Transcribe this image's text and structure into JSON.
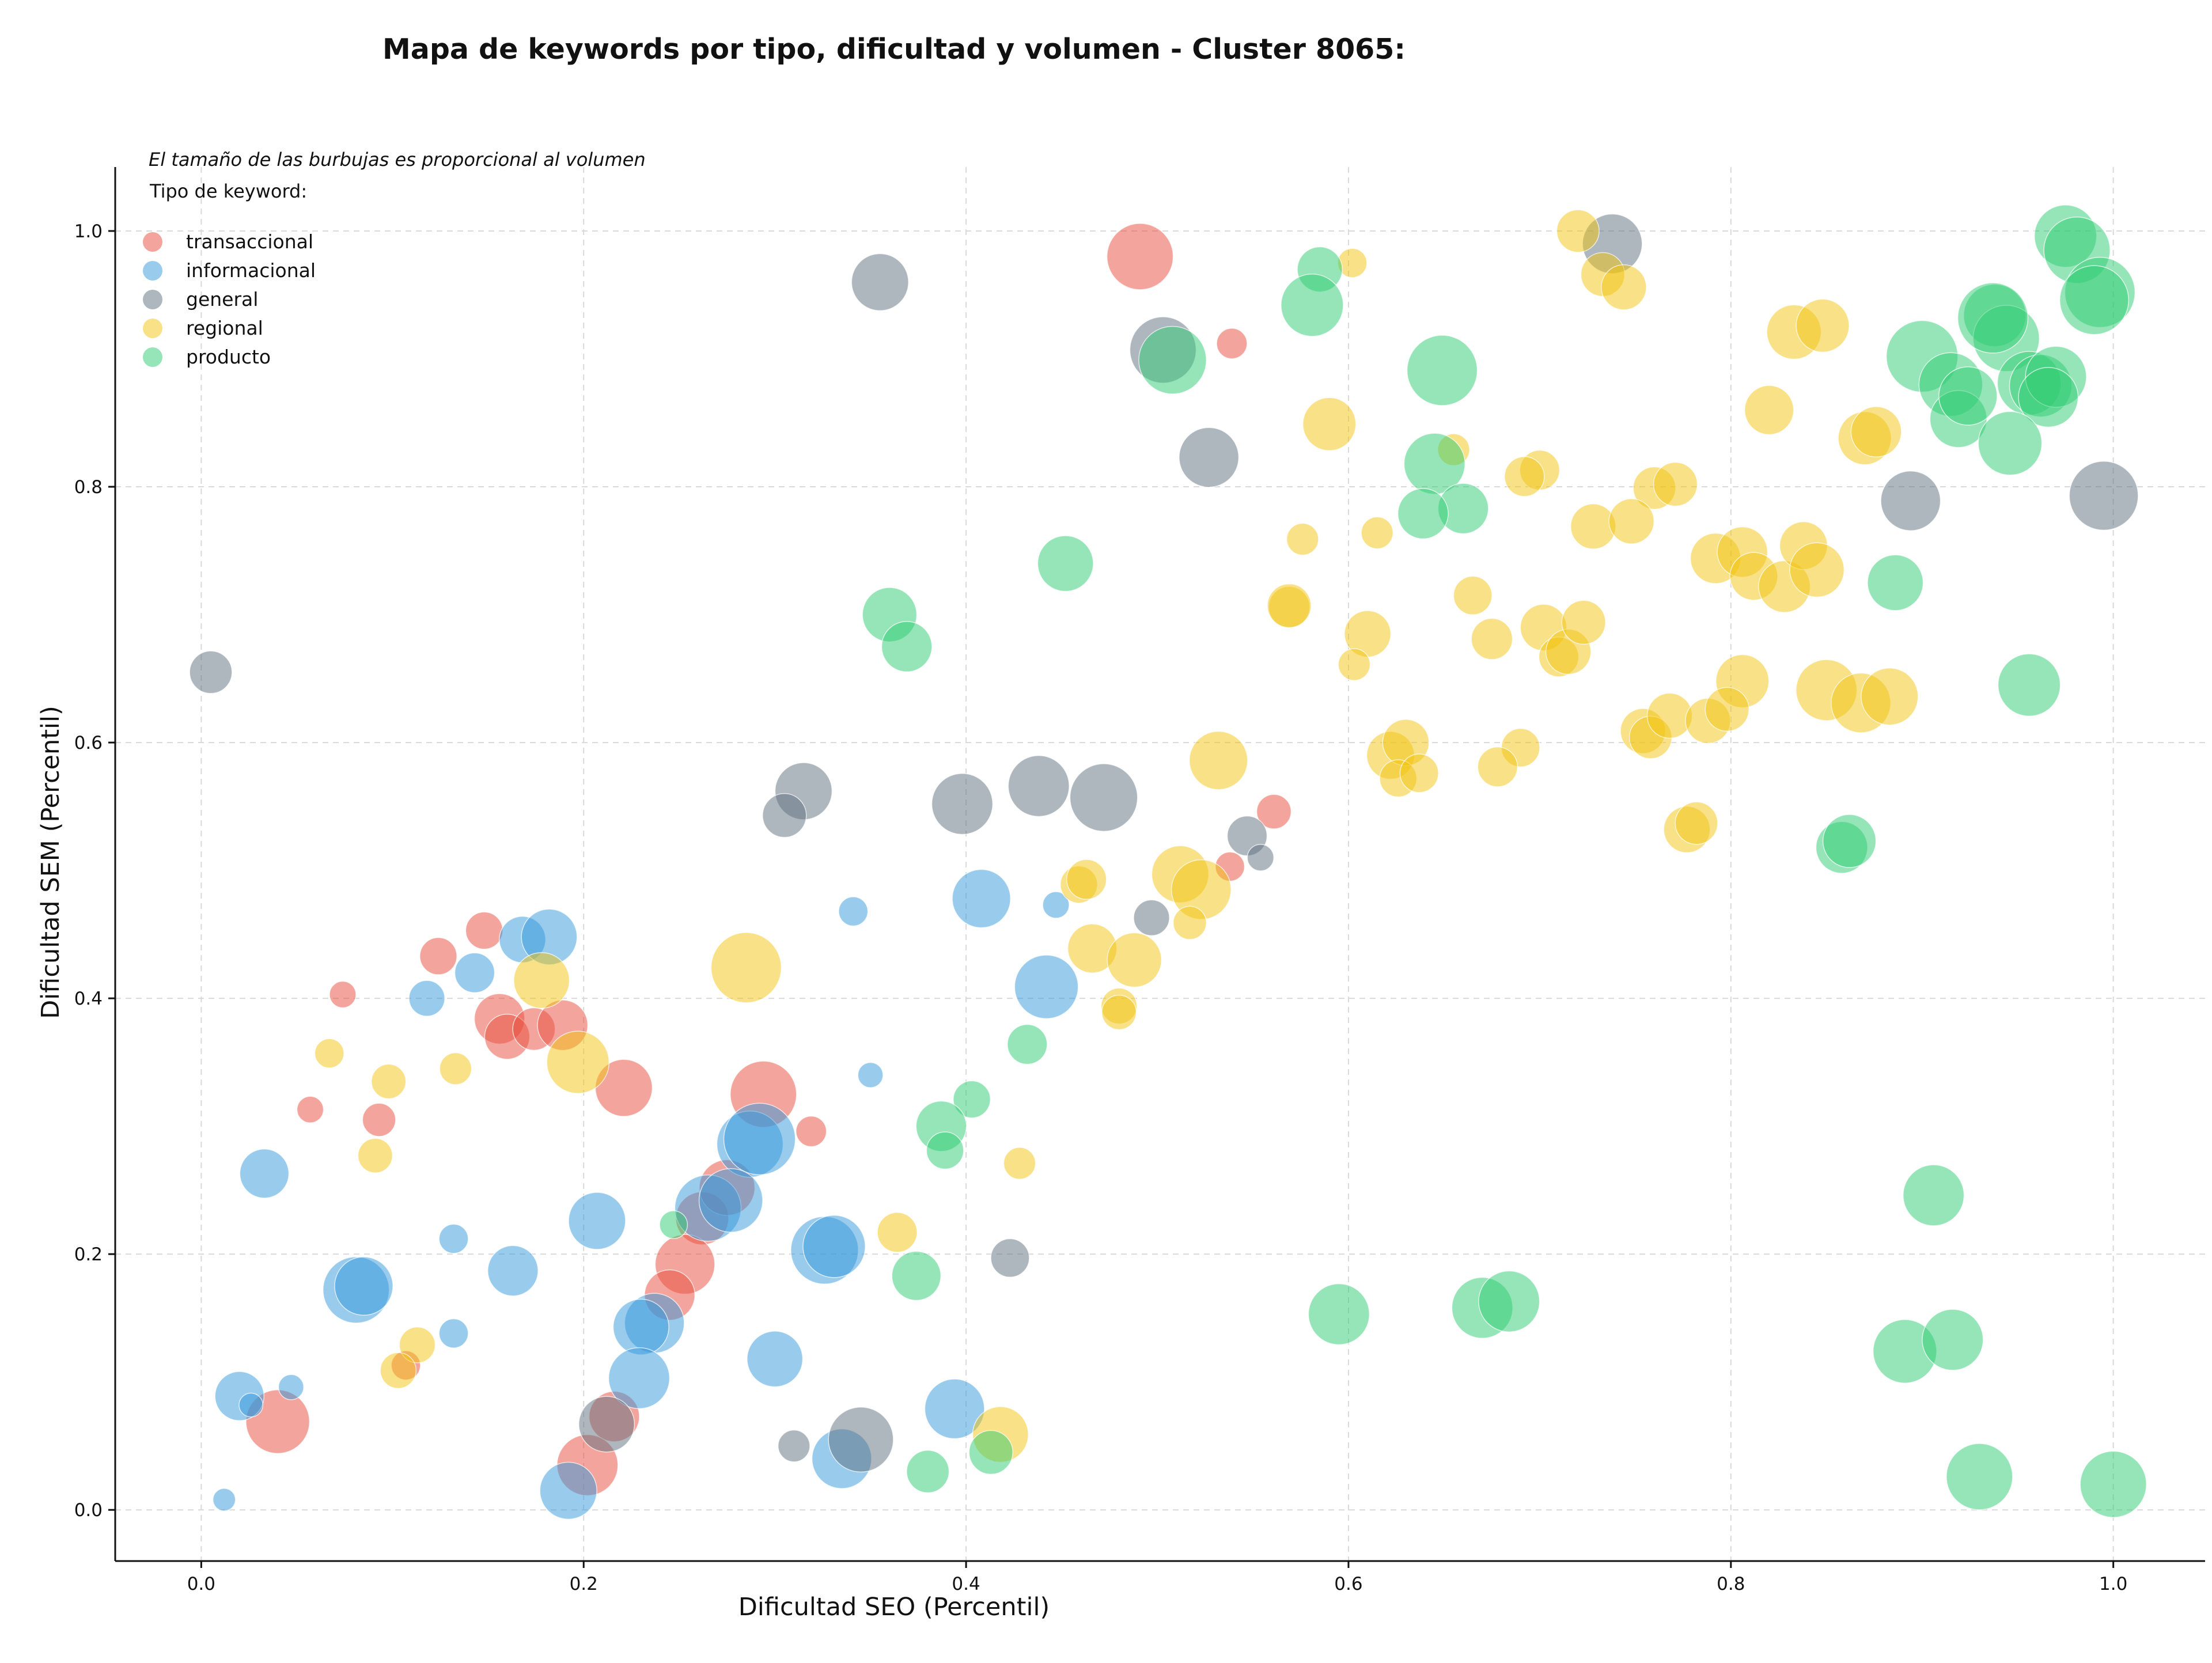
{
  "chart_data": {
    "type": "scatter",
    "title": "Mapa de keywords por tipo, dificultad y volumen - Cluster 8065:",
    "xlabel": "Dificultad SEO (Percentil)",
    "ylabel": "Dificultad SEM (Percentil)",
    "xlim": [
      -0.045,
      1.048
    ],
    "ylim": [
      -0.04,
      1.05
    ],
    "xticks": [
      0.0,
      0.2,
      0.4,
      0.6,
      0.8,
      1.0
    ],
    "yticks": [
      0.0,
      0.2,
      0.4,
      0.6,
      0.8,
      1.0
    ],
    "xtick_labels": [
      "0.0",
      "0.2",
      "0.4",
      "0.6",
      "0.8",
      "1.0"
    ],
    "ytick_labels": [
      "0.0",
      "0.2",
      "0.4",
      "0.6",
      "0.8",
      "1.0"
    ],
    "grid": true,
    "legend_placement": "top-left",
    "size_note": "El tamaño de las burbujas es proporcional al volumen",
    "legend_title": "Tipo de keyword:",
    "size_encoding": "relative bubble size (proportional to volume)",
    "series": [
      {
        "name": "transaccional",
        "color": "#e74c3c",
        "points": [
          [
            0.491,
            0.98,
            5
          ],
          [
            0.539,
            0.912,
            2.3
          ],
          [
            0.561,
            0.546,
            2.6
          ],
          [
            0.538,
            0.503,
            2.2
          ],
          [
            0.124,
            0.433,
            2.8
          ],
          [
            0.148,
            0.453,
            2.8
          ],
          [
            0.074,
            0.403,
            2.0
          ],
          [
            0.156,
            0.384,
            3.8
          ],
          [
            0.16,
            0.37,
            3.4
          ],
          [
            0.174,
            0.376,
            3.2
          ],
          [
            0.189,
            0.379,
            3.8
          ],
          [
            0.221,
            0.33,
            4.3
          ],
          [
            0.093,
            0.305,
            2.5
          ],
          [
            0.057,
            0.313,
            2.0
          ],
          [
            0.294,
            0.325,
            5.0
          ],
          [
            0.319,
            0.296,
            2.3
          ],
          [
            0.262,
            0.228,
            4.0
          ],
          [
            0.275,
            0.252,
            4.2
          ],
          [
            0.253,
            0.192,
            4.5
          ],
          [
            0.245,
            0.168,
            3.8
          ],
          [
            0.107,
            0.113,
            2.2
          ],
          [
            0.04,
            0.069,
            4.8
          ],
          [
            0.216,
            0.073,
            3.8
          ],
          [
            0.202,
            0.035,
            4.6
          ]
        ]
      },
      {
        "name": "informacional",
        "color": "#3498db",
        "points": [
          [
            0.408,
            0.478,
            4.4
          ],
          [
            0.341,
            0.468,
            2.2
          ],
          [
            0.447,
            0.473,
            2.0
          ],
          [
            0.442,
            0.409,
            4.8
          ],
          [
            0.168,
            0.446,
            3.5
          ],
          [
            0.182,
            0.448,
            4.2
          ],
          [
            0.143,
            0.42,
            3.0
          ],
          [
            0.118,
            0.4,
            2.7
          ],
          [
            0.35,
            0.34,
            1.9
          ],
          [
            0.033,
            0.263,
            3.7
          ],
          [
            0.287,
            0.286,
            5.0
          ],
          [
            0.292,
            0.29,
            5.4
          ],
          [
            0.265,
            0.236,
            5.0
          ],
          [
            0.277,
            0.242,
            4.8
          ],
          [
            0.207,
            0.226,
            4.3
          ],
          [
            0.326,
            0.203,
            5.1
          ],
          [
            0.331,
            0.206,
            4.7
          ],
          [
            0.132,
            0.212,
            2.2
          ],
          [
            0.163,
            0.187,
            3.8
          ],
          [
            0.081,
            0.172,
            5.0
          ],
          [
            0.085,
            0.175,
            4.4
          ],
          [
            0.132,
            0.138,
            2.2
          ],
          [
            0.237,
            0.146,
            4.5
          ],
          [
            0.23,
            0.143,
            4.2
          ],
          [
            0.229,
            0.103,
            4.6
          ],
          [
            0.3,
            0.118,
            4.2
          ],
          [
            0.02,
            0.089,
            3.7
          ],
          [
            0.026,
            0.082,
            1.8
          ],
          [
            0.047,
            0.096,
            1.9
          ],
          [
            0.394,
            0.079,
            4.5
          ],
          [
            0.335,
            0.04,
            4.5
          ],
          [
            0.192,
            0.015,
            4.3
          ],
          [
            0.012,
            0.008,
            1.7
          ]
        ]
      },
      {
        "name": "general",
        "color": "#5d6d7e",
        "points": [
          [
            0.355,
            0.96,
            4.3
          ],
          [
            0.738,
            0.99,
            4.5
          ],
          [
            0.503,
            0.907,
            5.0
          ],
          [
            0.527,
            0.823,
            4.5
          ],
          [
            0.894,
            0.789,
            4.5
          ],
          [
            0.995,
            0.793,
            5.2
          ],
          [
            0.005,
            0.655,
            3.2
          ],
          [
            0.315,
            0.562,
            4.3
          ],
          [
            0.305,
            0.543,
            3.3
          ],
          [
            0.398,
            0.552,
            4.6
          ],
          [
            0.438,
            0.566,
            4.6
          ],
          [
            0.472,
            0.557,
            5.1
          ],
          [
            0.547,
            0.527,
            3.0
          ],
          [
            0.554,
            0.51,
            2.0
          ],
          [
            0.497,
            0.463,
            2.7
          ],
          [
            0.423,
            0.197,
            2.9
          ],
          [
            0.212,
            0.067,
            4.2
          ],
          [
            0.345,
            0.055,
            4.9
          ],
          [
            0.31,
            0.05,
            2.4
          ]
        ]
      },
      {
        "name": "regional",
        "color": "#f1c40f",
        "points": [
          [
            0.72,
            1.0,
            3.2
          ],
          [
            0.733,
            0.966,
            3.3
          ],
          [
            0.744,
            0.956,
            3.4
          ],
          [
            0.602,
            0.975,
            2.2
          ],
          [
            0.59,
            0.849,
            4.0
          ],
          [
            0.655,
            0.829,
            2.4
          ],
          [
            0.7,
            0.813,
            3.0
          ],
          [
            0.692,
            0.808,
            3.0
          ],
          [
            0.76,
            0.799,
            3.2
          ],
          [
            0.771,
            0.802,
            3.3
          ],
          [
            0.576,
            0.759,
            2.4
          ],
          [
            0.615,
            0.764,
            2.4
          ],
          [
            0.728,
            0.769,
            3.4
          ],
          [
            0.748,
            0.773,
            3.4
          ],
          [
            0.82,
            0.86,
            3.7
          ],
          [
            0.833,
            0.921,
            4.1
          ],
          [
            0.848,
            0.926,
            4.0
          ],
          [
            0.87,
            0.838,
            4.0
          ],
          [
            0.876,
            0.843,
            3.8
          ],
          [
            0.792,
            0.744,
            3.8
          ],
          [
            0.806,
            0.749,
            3.8
          ],
          [
            0.812,
            0.73,
            3.6
          ],
          [
            0.828,
            0.722,
            3.9
          ],
          [
            0.838,
            0.754,
            3.6
          ],
          [
            0.845,
            0.735,
            4.1
          ],
          [
            0.569,
            0.706,
            3.1
          ],
          [
            0.569,
            0.707,
            3.3
          ],
          [
            0.665,
            0.715,
            2.9
          ],
          [
            0.675,
            0.681,
            3.1
          ],
          [
            0.702,
            0.69,
            3.5
          ],
          [
            0.71,
            0.667,
            3.0
          ],
          [
            0.715,
            0.671,
            3.4
          ],
          [
            0.723,
            0.694,
            3.3
          ],
          [
            0.61,
            0.685,
            3.5
          ],
          [
            0.603,
            0.661,
            2.4
          ],
          [
            0.806,
            0.648,
            4.0
          ],
          [
            0.85,
            0.641,
            4.6
          ],
          [
            0.868,
            0.631,
            4.5
          ],
          [
            0.883,
            0.636,
            4.3
          ],
          [
            0.754,
            0.609,
            3.4
          ],
          [
            0.758,
            0.604,
            3.2
          ],
          [
            0.768,
            0.621,
            3.4
          ],
          [
            0.788,
            0.617,
            3.4
          ],
          [
            0.798,
            0.626,
            3.3
          ],
          [
            0.69,
            0.596,
            2.9
          ],
          [
            0.678,
            0.581,
            3.0
          ],
          [
            0.622,
            0.59,
            3.6
          ],
          [
            0.63,
            0.6,
            3.5
          ],
          [
            0.626,
            0.572,
            2.8
          ],
          [
            0.637,
            0.576,
            2.9
          ],
          [
            0.532,
            0.586,
            4.4
          ],
          [
            0.777,
            0.532,
            3.5
          ],
          [
            0.782,
            0.537,
            3.2
          ],
          [
            0.512,
            0.497,
            4.3
          ],
          [
            0.523,
            0.485,
            4.5
          ],
          [
            0.517,
            0.459,
            2.5
          ],
          [
            0.459,
            0.489,
            2.8
          ],
          [
            0.463,
            0.493,
            3.0
          ],
          [
            0.285,
            0.424,
            5.3
          ],
          [
            0.178,
            0.414,
            4.2
          ],
          [
            0.197,
            0.35,
            4.7
          ],
          [
            0.067,
            0.357,
            2.2
          ],
          [
            0.098,
            0.335,
            2.6
          ],
          [
            0.133,
            0.345,
            2.4
          ],
          [
            0.091,
            0.277,
            2.6
          ],
          [
            0.466,
            0.439,
            3.7
          ],
          [
            0.488,
            0.43,
            4.1
          ],
          [
            0.48,
            0.394,
            2.7
          ],
          [
            0.48,
            0.389,
            2.6
          ],
          [
            0.428,
            0.271,
            2.4
          ],
          [
            0.364,
            0.217,
            3.0
          ],
          [
            0.113,
            0.129,
            2.7
          ],
          [
            0.103,
            0.109,
            2.7
          ],
          [
            0.418,
            0.059,
            4.2
          ]
        ]
      },
      {
        "name": "producto",
        "color": "#2ecc71",
        "points": [
          [
            0.585,
            0.97,
            3.4
          ],
          [
            0.581,
            0.942,
            4.7
          ],
          [
            0.508,
            0.899,
            5.1
          ],
          [
            0.649,
            0.891,
            5.3
          ],
          [
            0.645,
            0.818,
            4.6
          ],
          [
            0.66,
            0.783,
            3.8
          ],
          [
            0.639,
            0.779,
            3.8
          ],
          [
            0.452,
            0.74,
            4.2
          ],
          [
            0.36,
            0.7,
            4.1
          ],
          [
            0.369,
            0.675,
            3.8
          ],
          [
            0.975,
            0.996,
            4.7
          ],
          [
            0.981,
            0.985,
            5.0
          ],
          [
            0.993,
            0.952,
            5.3
          ],
          [
            0.99,
            0.946,
            5.2
          ],
          [
            0.938,
            0.934,
            4.7
          ],
          [
            0.944,
            0.916,
            5.0
          ],
          [
            0.937,
            0.932,
            5.3
          ],
          [
            0.9,
            0.902,
            5.4
          ],
          [
            0.915,
            0.88,
            4.8
          ],
          [
            0.919,
            0.853,
            4.3
          ],
          [
            0.924,
            0.871,
            4.4
          ],
          [
            0.956,
            0.881,
            4.8
          ],
          [
            0.962,
            0.879,
            4.7
          ],
          [
            0.97,
            0.886,
            4.6
          ],
          [
            0.966,
            0.87,
            4.5
          ],
          [
            0.946,
            0.834,
            4.8
          ],
          [
            0.886,
            0.725,
            4.2
          ],
          [
            0.956,
            0.645,
            4.7
          ],
          [
            0.858,
            0.518,
            3.9
          ],
          [
            0.862,
            0.523,
            4.0
          ],
          [
            0.432,
            0.364,
            3.0
          ],
          [
            0.403,
            0.321,
            2.8
          ],
          [
            0.387,
            0.3,
            3.8
          ],
          [
            0.389,
            0.281,
            2.8
          ],
          [
            0.374,
            0.183,
            3.7
          ],
          [
            0.247,
            0.223,
            2.1
          ],
          [
            0.906,
            0.246,
            4.6
          ],
          [
            0.595,
            0.153,
            4.6
          ],
          [
            0.67,
            0.158,
            4.6
          ],
          [
            0.684,
            0.163,
            4.6
          ],
          [
            0.891,
            0.124,
            4.8
          ],
          [
            0.916,
            0.133,
            4.6
          ],
          [
            0.93,
            0.026,
            5.0
          ],
          [
            1.0,
            0.02,
            5.0
          ],
          [
            0.38,
            0.03,
            3.2
          ],
          [
            0.413,
            0.045,
            3.3
          ]
        ]
      }
    ]
  }
}
